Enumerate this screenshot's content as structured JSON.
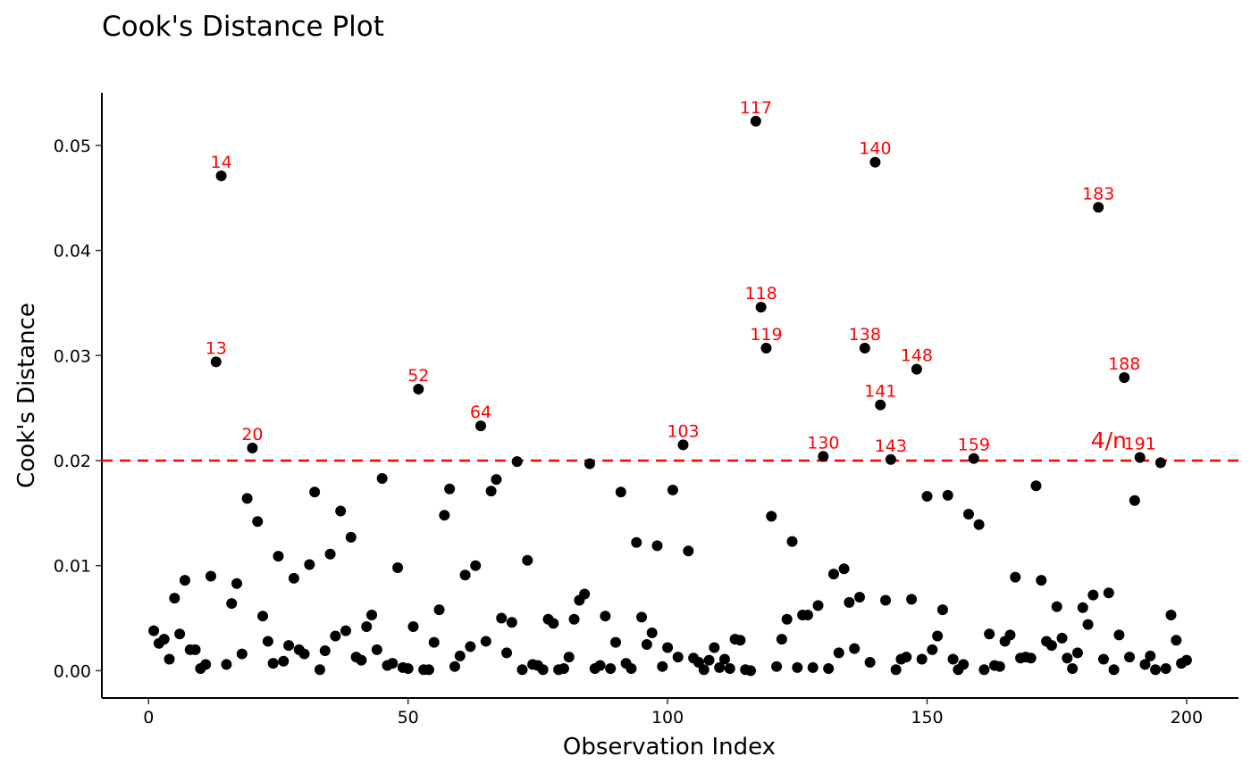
{
  "chart_data": {
    "type": "scatter",
    "title": "Cook's Distance Plot",
    "xlabel": "Observation Index",
    "ylabel": "Cook's Distance",
    "xlim": [
      -9,
      210
    ],
    "ylim": [
      -0.0026,
      0.055
    ],
    "x_ticks": [
      0,
      50,
      100,
      150,
      200
    ],
    "y_ticks": [
      0.0,
      0.01,
      0.02,
      0.03,
      0.04,
      0.05
    ],
    "y_tick_labels": [
      "0.00",
      "0.01",
      "0.02",
      "0.03",
      "0.04",
      "0.05"
    ],
    "grid": false,
    "point_color": "#000000",
    "label_color": "#ff0000",
    "reference_line": {
      "y": 0.02,
      "label": "4/n",
      "color": "#ff0000",
      "style": "dashed"
    },
    "points": [
      [
        1,
        0.0038
      ],
      [
        2,
        0.0026
      ],
      [
        3,
        0.003
      ],
      [
        4,
        0.0011
      ],
      [
        5,
        0.0069
      ],
      [
        6,
        0.0035
      ],
      [
        7,
        0.0086
      ],
      [
        8,
        0.002
      ],
      [
        9,
        0.002
      ],
      [
        10,
        0.0002
      ],
      [
        11,
        0.0006
      ],
      [
        12,
        0.009
      ],
      [
        13,
        0.0294
      ],
      [
        14,
        0.0471
      ],
      [
        15,
        0.0006
      ],
      [
        16,
        0.0064
      ],
      [
        17,
        0.0083
      ],
      [
        18,
        0.0016
      ],
      [
        19,
        0.0164
      ],
      [
        20,
        0.0212
      ],
      [
        21,
        0.0142
      ],
      [
        22,
        0.0052
      ],
      [
        23,
        0.0028
      ],
      [
        24,
        0.0007
      ],
      [
        25,
        0.0109
      ],
      [
        26,
        0.0009
      ],
      [
        27,
        0.0024
      ],
      [
        28,
        0.0088
      ],
      [
        29,
        0.002
      ],
      [
        30,
        0.0016
      ],
      [
        31,
        0.0101
      ],
      [
        32,
        0.017
      ],
      [
        33,
        0.0001
      ],
      [
        34,
        0.0019
      ],
      [
        35,
        0.0111
      ],
      [
        36,
        0.0033
      ],
      [
        37,
        0.0152
      ],
      [
        38,
        0.0038
      ],
      [
        39,
        0.0127
      ],
      [
        40,
        0.0013
      ],
      [
        41,
        0.001
      ],
      [
        42,
        0.0042
      ],
      [
        43,
        0.0053
      ],
      [
        44,
        0.002
      ],
      [
        45,
        0.0183
      ],
      [
        46,
        0.0005
      ],
      [
        47,
        0.0007
      ],
      [
        48,
        0.0098
      ],
      [
        49,
        0.0003
      ],
      [
        50,
        0.0002
      ],
      [
        51,
        0.0042
      ],
      [
        52,
        0.0268
      ],
      [
        53,
        0.0001
      ],
      [
        54,
        0.0001
      ],
      [
        55,
        0.0027
      ],
      [
        56,
        0.0058
      ],
      [
        57,
        0.0148
      ],
      [
        58,
        0.0173
      ],
      [
        59,
        0.0004
      ],
      [
        60,
        0.0014
      ],
      [
        61,
        0.0091
      ],
      [
        62,
        0.0023
      ],
      [
        63,
        0.01
      ],
      [
        64,
        0.0233
      ],
      [
        65,
        0.0028
      ],
      [
        66,
        0.0171
      ],
      [
        67,
        0.0182
      ],
      [
        68,
        0.005
      ],
      [
        69,
        0.0017
      ],
      [
        70,
        0.0046
      ],
      [
        71,
        0.0199
      ],
      [
        72,
        0.0001
      ],
      [
        73,
        0.0105
      ],
      [
        74,
        0.0006
      ],
      [
        75,
        0.0005
      ],
      [
        76,
        0.0001
      ],
      [
        77,
        0.0049
      ],
      [
        78,
        0.0045
      ],
      [
        79,
        0.0001
      ],
      [
        80,
        0.0002
      ],
      [
        81,
        0.0013
      ],
      [
        82,
        0.0049
      ],
      [
        83,
        0.0067
      ],
      [
        84,
        0.0073
      ],
      [
        85,
        0.0197
      ],
      [
        86,
        0.0002
      ],
      [
        87,
        0.0005
      ],
      [
        88,
        0.0052
      ],
      [
        89,
        0.0002
      ],
      [
        90,
        0.0027
      ],
      [
        91,
        0.017
      ],
      [
        92,
        0.0007
      ],
      [
        93,
        0.0002
      ],
      [
        94,
        0.0122
      ],
      [
        95,
        0.0051
      ],
      [
        96,
        0.0025
      ],
      [
        97,
        0.0036
      ],
      [
        98,
        0.0119
      ],
      [
        99,
        0.0004
      ],
      [
        100,
        0.0022
      ],
      [
        101,
        0.0172
      ],
      [
        102,
        0.0013
      ],
      [
        103,
        0.0215
      ],
      [
        104,
        0.0114
      ],
      [
        105,
        0.0012
      ],
      [
        106,
        0.0008
      ],
      [
        107,
        0.0001
      ],
      [
        108,
        0.001
      ],
      [
        109,
        0.0022
      ],
      [
        110,
        0.0003
      ],
      [
        111,
        0.0011
      ],
      [
        112,
        0.0002
      ],
      [
        113,
        0.003
      ],
      [
        114,
        0.0029
      ],
      [
        115,
        0.0001
      ],
      [
        116,
        0.0
      ],
      [
        117,
        0.0523
      ],
      [
        118,
        0.0346
      ],
      [
        119,
        0.0307
      ],
      [
        120,
        0.0147
      ],
      [
        121,
        0.0004
      ],
      [
        122,
        0.003
      ],
      [
        123,
        0.0049
      ],
      [
        124,
        0.0123
      ],
      [
        125,
        0.0003
      ],
      [
        126,
        0.0053
      ],
      [
        127,
        0.0053
      ],
      [
        128,
        0.0003
      ],
      [
        129,
        0.0062
      ],
      [
        130,
        0.0204
      ],
      [
        131,
        0.0002
      ],
      [
        132,
        0.0092
      ],
      [
        133,
        0.0017
      ],
      [
        134,
        0.0097
      ],
      [
        135,
        0.0065
      ],
      [
        136,
        0.0021
      ],
      [
        137,
        0.007
      ],
      [
        138,
        0.0307
      ],
      [
        139,
        0.0008
      ],
      [
        140,
        0.0484
      ],
      [
        141,
        0.0253
      ],
      [
        142,
        0.0067
      ],
      [
        143,
        0.0201
      ],
      [
        144,
        0.0001
      ],
      [
        145,
        0.0011
      ],
      [
        146,
        0.0013
      ],
      [
        147,
        0.0068
      ],
      [
        148,
        0.0287
      ],
      [
        149,
        0.0011
      ],
      [
        150,
        0.0166
      ],
      [
        151,
        0.002
      ],
      [
        152,
        0.0033
      ],
      [
        153,
        0.0058
      ],
      [
        154,
        0.0167
      ],
      [
        155,
        0.0011
      ],
      [
        156,
        0.0001
      ],
      [
        157,
        0.0006
      ],
      [
        158,
        0.0149
      ],
      [
        159,
        0.0202
      ],
      [
        160,
        0.0139
      ],
      [
        161,
        0.0001
      ],
      [
        162,
        0.0035
      ],
      [
        163,
        0.0005
      ],
      [
        164,
        0.0004
      ],
      [
        165,
        0.0028
      ],
      [
        166,
        0.0034
      ],
      [
        167,
        0.0089
      ],
      [
        168,
        0.0012
      ],
      [
        169,
        0.0013
      ],
      [
        170,
        0.0012
      ],
      [
        171,
        0.0176
      ],
      [
        172,
        0.0086
      ],
      [
        173,
        0.0028
      ],
      [
        174,
        0.0024
      ],
      [
        175,
        0.0061
      ],
      [
        176,
        0.0031
      ],
      [
        177,
        0.0012
      ],
      [
        178,
        0.0002
      ],
      [
        179,
        0.0017
      ],
      [
        180,
        0.006
      ],
      [
        181,
        0.0044
      ],
      [
        182,
        0.0072
      ],
      [
        183,
        0.0441
      ],
      [
        184,
        0.0011
      ],
      [
        185,
        0.0074
      ],
      [
        186,
        0.0001
      ],
      [
        187,
        0.0034
      ],
      [
        188,
        0.0279
      ],
      [
        189,
        0.0013
      ],
      [
        190,
        0.0162
      ],
      [
        191,
        0.0203
      ],
      [
        192,
        0.0006
      ],
      [
        193,
        0.0014
      ],
      [
        194,
        0.0001
      ],
      [
        195,
        0.0198
      ],
      [
        196,
        0.0002
      ],
      [
        197,
        0.0053
      ],
      [
        198,
        0.0029
      ],
      [
        199,
        0.0007
      ],
      [
        200,
        0.001
      ]
    ],
    "labeled_points": [
      {
        "label": "14",
        "x": 14,
        "y": 0.0471
      },
      {
        "label": "13",
        "x": 13,
        "y": 0.0294
      },
      {
        "label": "20",
        "x": 20,
        "y": 0.0212
      },
      {
        "label": "52",
        "x": 52,
        "y": 0.0268
      },
      {
        "label": "64",
        "x": 64,
        "y": 0.0233
      },
      {
        "label": "103",
        "x": 103,
        "y": 0.0215
      },
      {
        "label": "117",
        "x": 117,
        "y": 0.0523
      },
      {
        "label": "118",
        "x": 118,
        "y": 0.0346
      },
      {
        "label": "119",
        "x": 119,
        "y": 0.0307
      },
      {
        "label": "130",
        "x": 130,
        "y": 0.0204
      },
      {
        "label": "138",
        "x": 138,
        "y": 0.0307
      },
      {
        "label": "140",
        "x": 140,
        "y": 0.0484
      },
      {
        "label": "141",
        "x": 141,
        "y": 0.0253
      },
      {
        "label": "143",
        "x": 143,
        "y": 0.0201
      },
      {
        "label": "148",
        "x": 148,
        "y": 0.0287
      },
      {
        "label": "159",
        "x": 159,
        "y": 0.0202
      },
      {
        "label": "183",
        "x": 183,
        "y": 0.0441
      },
      {
        "label": "188",
        "x": 188,
        "y": 0.0279
      },
      {
        "label": "191",
        "x": 191,
        "y": 0.0203
      }
    ]
  }
}
